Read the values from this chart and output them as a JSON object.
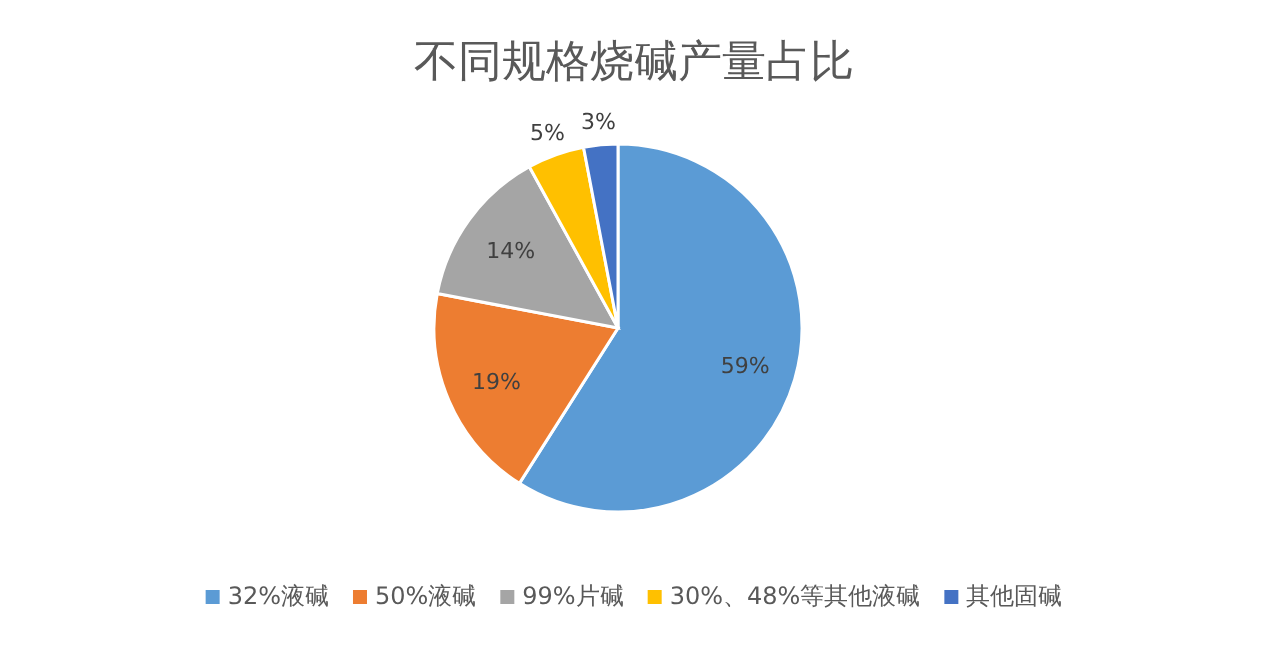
{
  "chart_data": {
    "type": "pie",
    "title": "不同规格烧碱产量占比",
    "categories": [
      "32%液碱",
      "50%液碱",
      "99%片碱",
      "30%、48%等其他液碱",
      "其他固碱"
    ],
    "values": [
      59,
      19,
      14,
      5,
      3
    ],
    "colors": [
      "#5b9bd5",
      "#ed7d31",
      "#a5a5a5",
      "#ffc000",
      "#4472c4"
    ],
    "value_labels": [
      "59%",
      "19%",
      "14%",
      "5%",
      "3%"
    ],
    "legend": "bottom"
  }
}
